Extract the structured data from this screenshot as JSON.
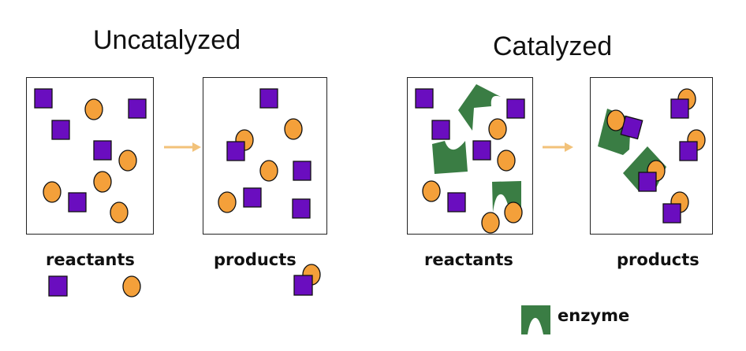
{
  "titles": {
    "uncatalyzed": "Uncatalyzed",
    "catalyzed": "Catalyzed"
  },
  "labels": {
    "uncat_reactants": "reactants",
    "uncat_products": "products",
    "cat_reactants": "reactants",
    "cat_products": "products",
    "enzyme": "enzyme"
  },
  "colors": {
    "square": "#6a0dbf",
    "circle": "#f4a03a",
    "enzyme": "#3a7d44",
    "arrow": "#f2c27a",
    "outline": "#111111"
  },
  "icons": [
    "purple-square-molecule",
    "orange-circle-molecule",
    "green-enzyme-shape",
    "right-arrow"
  ]
}
